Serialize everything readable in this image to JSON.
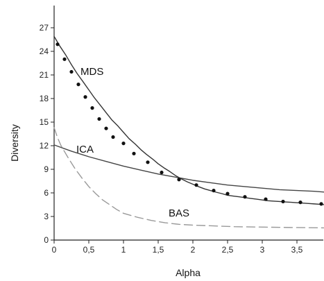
{
  "chart_data": {
    "type": "line",
    "xlabel": "Alpha",
    "ylabel": "Diversity",
    "xlim": [
      0,
      3.9
    ],
    "ylim": [
      0,
      30
    ],
    "x_ticks": [
      "0",
      "0,5",
      "1",
      "1,5",
      "2",
      "2,5",
      "3",
      "3,5"
    ],
    "x_tick_values": [
      0,
      0.5,
      1,
      1.5,
      2,
      2.5,
      3,
      3.5
    ],
    "y_ticks": [
      "0",
      "3",
      "6",
      "9",
      "12",
      "15",
      "18",
      "21",
      "24",
      "27"
    ],
    "y_tick_values": [
      0,
      3,
      6,
      9,
      12,
      15,
      18,
      21,
      24,
      27
    ],
    "grid": false,
    "series": [
      {
        "name": "MDS",
        "color": "#333333",
        "style": "solid-with-dots",
        "x": [
          0,
          0.08,
          0.17,
          0.25,
          0.33,
          0.42,
          0.5,
          0.58,
          0.67,
          0.75,
          0.83,
          0.92,
          1.0,
          1.08,
          1.17,
          1.25,
          1.33,
          1.42,
          1.5,
          1.58,
          1.67,
          1.75,
          1.83,
          1.92,
          2.0,
          2.08,
          2.17,
          2.25,
          2.33,
          2.42,
          2.5,
          2.58,
          2.67,
          2.75,
          2.83,
          2.92,
          3.0,
          3.08,
          3.17,
          3.25,
          3.33,
          3.42,
          3.5,
          3.58,
          3.67,
          3.75,
          3.83,
          3.9
        ],
        "y": [
          25.9,
          24.7,
          23.5,
          22.3,
          21.2,
          20.1,
          19.1,
          18.1,
          17.1,
          16.2,
          15.3,
          14.5,
          13.7,
          12.9,
          12.2,
          11.5,
          10.9,
          10.3,
          9.7,
          9.2,
          8.7,
          8.2,
          7.8,
          7.4,
          7.1,
          6.8,
          6.5,
          6.3,
          6.1,
          5.9,
          5.7,
          5.6,
          5.5,
          5.4,
          5.3,
          5.2,
          5.1,
          5.0,
          4.95,
          4.9,
          4.85,
          4.8,
          4.75,
          4.7,
          4.65,
          4.6,
          4.55,
          4.5
        ],
        "marker_x": [
          0.05,
          0.15,
          0.25,
          0.35,
          0.45,
          0.55,
          0.65,
          0.75,
          0.85,
          1.0,
          1.15,
          1.35,
          1.55,
          1.8,
          2.05,
          2.3,
          2.5,
          2.75,
          3.05,
          3.3,
          3.55,
          3.85
        ],
        "marker_y": [
          24.9,
          23.0,
          21.4,
          19.8,
          18.2,
          16.8,
          15.4,
          14.2,
          13.1,
          12.3,
          11.0,
          9.9,
          8.6,
          7.7,
          7.0,
          6.3,
          5.9,
          5.5,
          5.2,
          4.9,
          4.8,
          4.6
        ]
      },
      {
        "name": "ICA",
        "color": "#444444",
        "style": "solid",
        "x": [
          0,
          0.25,
          0.5,
          0.75,
          1.0,
          1.25,
          1.5,
          1.75,
          2.0,
          2.25,
          2.5,
          2.75,
          3.0,
          3.25,
          3.5,
          3.75,
          3.9
        ],
        "y": [
          12.1,
          11.3,
          10.6,
          10.0,
          9.4,
          8.9,
          8.4,
          8.0,
          7.6,
          7.3,
          7.0,
          6.8,
          6.6,
          6.4,
          6.3,
          6.2,
          6.1
        ]
      },
      {
        "name": "BAS",
        "color": "#999999",
        "style": "dashed",
        "x": [
          0,
          0.05,
          0.1,
          0.2,
          0.3,
          0.4,
          0.5,
          0.6,
          0.7,
          0.8,
          0.9,
          1.0,
          1.2,
          1.4,
          1.6,
          1.8,
          2.0,
          2.3,
          2.6,
          3.0,
          3.4,
          3.9
        ],
        "y": [
          14.3,
          13.0,
          12.0,
          10.5,
          9.1,
          7.9,
          6.8,
          5.9,
          5.1,
          4.5,
          3.9,
          3.4,
          2.9,
          2.5,
          2.2,
          2.0,
          1.9,
          1.8,
          1.7,
          1.65,
          1.6,
          1.55
        ]
      }
    ],
    "series_label_text": [
      "MDS",
      "ICA",
      "BAS"
    ],
    "series_label_at": [
      [
        0.38,
        21.0
      ],
      [
        0.32,
        11.1
      ],
      [
        1.65,
        3.0
      ]
    ]
  }
}
